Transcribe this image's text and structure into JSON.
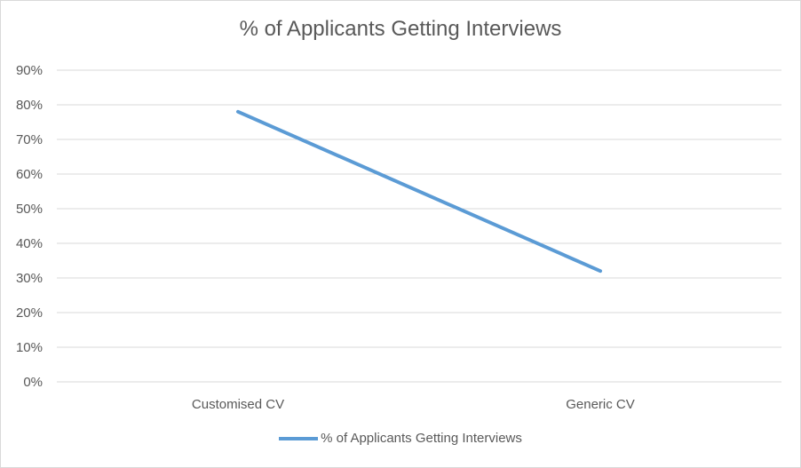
{
  "chart_data": {
    "type": "line",
    "title": "% of Applicants Getting Interviews",
    "categories": [
      "Customised CV",
      "Generic CV"
    ],
    "series": [
      {
        "name": "% of Applicants Getting Interviews",
        "values": [
          78,
          32
        ],
        "color": "#5b9bd5"
      }
    ],
    "ylim": [
      0,
      90
    ],
    "yticks": [
      "0%",
      "10%",
      "20%",
      "30%",
      "40%",
      "50%",
      "60%",
      "70%",
      "80%",
      "90%"
    ],
    "xlabel": "",
    "ylabel": "",
    "grid": true,
    "legend": "bottom"
  }
}
